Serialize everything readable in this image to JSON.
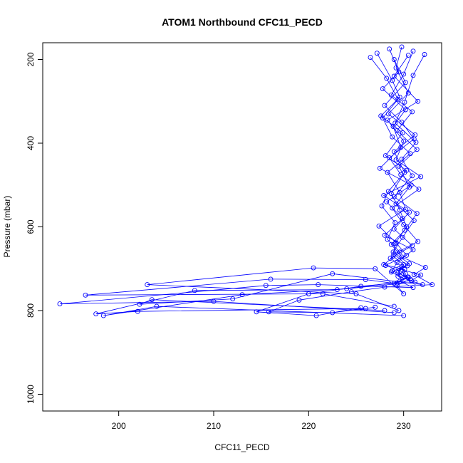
{
  "chart_data": {
    "type": "line",
    "title": "ATOM1 Northbound CFC11_PECD",
    "xlabel": "CFC11_PECD",
    "ylabel": "Pressure (mbar)",
    "xlim": [
      192,
      234
    ],
    "ylim": [
      1040,
      160
    ],
    "y_reversed": true,
    "x_ticks": [
      200,
      210,
      220,
      230
    ],
    "x_tick_labels": [
      "200",
      "210",
      "220",
      "230"
    ],
    "y_ticks": [
      200,
      400,
      600,
      800,
      1000
    ],
    "y_tick_labels": [
      "200",
      "400",
      "600",
      "800",
      "1000"
    ],
    "grid": false,
    "legend": "none",
    "colors": {
      "series": "#0000ff",
      "axis": "#000000",
      "background": "#ffffff"
    },
    "marker": "open-circle",
    "series": [
      {
        "x": [
          229.8,
          229.2,
          230.5,
          228.4,
          231.2,
          229.0,
          230.1,
          228.7,
          229.6,
          230.3,
          229.1,
          228.9,
          230.0,
          229.4,
          230.7,
          229.3,
          230.0,
          227.0,
          220.5,
          203.0,
          225.0,
          229.5
        ],
        "y": [
          170,
          220,
          280,
          330,
          380,
          420,
          470,
          520,
          560,
          600,
          640,
          670,
          690,
          710,
          725,
          740,
          760,
          700,
          698,
          738,
          760,
          800
        ]
      },
      {
        "x": [
          228.5,
          229.5,
          227.8,
          230.2,
          228.9,
          229.7,
          227.5,
          230.8,
          228.2,
          229.9,
          228.0,
          231.0,
          229.3,
          228.8,
          230.4,
          229.0,
          226.0,
          216.0,
          196.5,
          221.5,
          229.0
        ],
        "y": [
          175,
          230,
          270,
          320,
          360,
          410,
          460,
          500,
          540,
          580,
          620,
          655,
          685,
          705,
          720,
          735,
          726,
          725,
          763,
          760,
          790
        ]
      },
      {
        "x": [
          230.5,
          229.0,
          231.5,
          228.3,
          230.0,
          229.2,
          231.8,
          227.9,
          230.6,
          229.0,
          230.9,
          228.6,
          229.8,
          230.2,
          229.6,
          231.0,
          221.0,
          215.5,
          193.8,
          210.0,
          229.0
        ],
        "y": [
          190,
          240,
          300,
          345,
          395,
          440,
          480,
          525,
          565,
          605,
          645,
          675,
          695,
          712,
          730,
          745,
          738,
          740,
          784,
          778,
          805
        ]
      },
      {
        "x": [
          227.2,
          228.8,
          229.6,
          227.6,
          229.9,
          228.1,
          230.3,
          228.4,
          227.7,
          229.1,
          228.3,
          229.6,
          227.9,
          230.1,
          229.4,
          231.2,
          223.0,
          208.0,
          197.6,
          202.0,
          226.0
        ],
        "y": [
          185,
          250,
          290,
          335,
          375,
          430,
          465,
          515,
          550,
          590,
          630,
          660,
          690,
          702,
          718,
          732,
          750,
          752,
          808,
          802,
          795
        ]
      },
      {
        "x": [
          231.0,
          230.0,
          228.7,
          230.9,
          229.3,
          231.4,
          229.5,
          230.6,
          229.2,
          231.1,
          229.9,
          228.9,
          230.6,
          229.5,
          231.8,
          230.8,
          224.0,
          213.0,
          198.4,
          204.0,
          230.0
        ],
        "y": [
          180,
          235,
          285,
          325,
          370,
          415,
          455,
          505,
          545,
          585,
          625,
          660,
          688,
          700,
          715,
          728,
          748,
          762,
          812,
          790,
          812
        ]
      },
      {
        "x": [
          229.0,
          230.2,
          228.0,
          229.8,
          231.1,
          228.5,
          229.7,
          231.6,
          228.8,
          230.0,
          231.5,
          229.0,
          230.4,
          228.7,
          229.9,
          232.0,
          222.5,
          212.0,
          202.2,
          203.5,
          228.0
        ],
        "y": [
          200,
          255,
          310,
          350,
          390,
          435,
          475,
          510,
          555,
          595,
          635,
          665,
          693,
          708,
          722,
          738,
          712,
          772,
          785,
          774,
          800
        ]
      },
      {
        "x": [
          226.5,
          228.2,
          229.4,
          227.8,
          228.8,
          230.7,
          228.3,
          229.6,
          230.2,
          227.4,
          229.2,
          230.3,
          228.1,
          229.7,
          230.5,
          229.3,
          225.5,
          220.0,
          214.5,
          220.8,
          225.5
        ],
        "y": [
          195,
          245,
          295,
          340,
          385,
          425,
          470,
          518,
          558,
          598,
          638,
          668,
          692,
          706,
          720,
          734,
          742,
          760,
          803,
          812,
          793
        ]
      },
      {
        "x": [
          232.2,
          231.0,
          230.1,
          229.1,
          231.3,
          229.8,
          230.9,
          229.0,
          231.4,
          230.1,
          228.7,
          229.8,
          232.3,
          231.1,
          233.0,
          228.0,
          224.5,
          219.0,
          215.8,
          222.5,
          227.0
        ],
        "y": [
          188,
          238,
          302,
          352,
          398,
          438,
          478,
          528,
          568,
          608,
          642,
          672,
          697,
          714,
          738,
          744,
          755,
          775,
          803,
          805,
          792
        ]
      }
    ]
  }
}
